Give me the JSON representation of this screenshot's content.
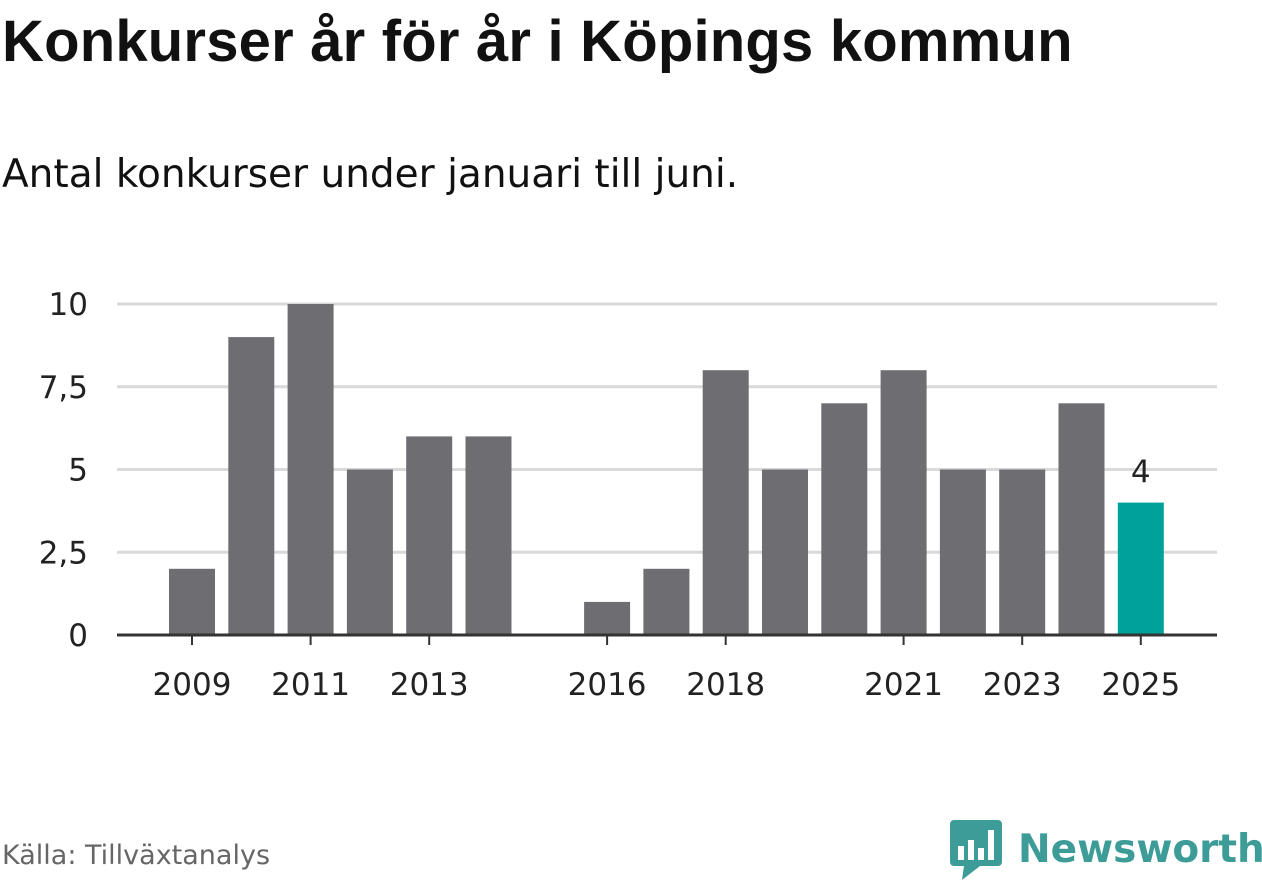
{
  "header": {
    "title": "Konkurser år för år i Köpings kommun",
    "subtitle": "Antal konkurser under januari till juni."
  },
  "footer": {
    "source": "Källa: Tillväxtanalys",
    "brand": "Newsworthy"
  },
  "colors": {
    "bar": "#6e6d72",
    "highlight": "#00a19a",
    "grid": "#d9d9d9",
    "axis": "#333333",
    "brand": "#3d9c98"
  },
  "chart_data": {
    "type": "bar",
    "title": "Konkurser år för år i Köpings kommun",
    "subtitle": "Antal konkurser under januari till juni.",
    "xlabel": "",
    "ylabel": "",
    "categories": [
      "2009",
      "2010",
      "2011",
      "2012",
      "2013",
      "2014",
      "2015",
      "2016",
      "2017",
      "2018",
      "2019",
      "2020",
      "2021",
      "2022",
      "2023",
      "2024",
      "2025"
    ],
    "values": [
      2,
      9,
      10,
      5,
      6,
      6,
      0,
      1,
      2,
      8,
      5,
      7,
      8,
      5,
      5,
      7,
      4
    ],
    "x_tick_labels": [
      "2009",
      "2011",
      "2013",
      "2016",
      "2018",
      "2021",
      "2023",
      "2025"
    ],
    "y_ticks": [
      0,
      2.5,
      5,
      7.5,
      10
    ],
    "y_tick_labels": [
      "0",
      "2,5",
      "5",
      "7,5",
      "10"
    ],
    "ylim": [
      0,
      10
    ],
    "grid": true,
    "legend": "none",
    "highlight": {
      "category": "2025",
      "label": "4"
    }
  }
}
